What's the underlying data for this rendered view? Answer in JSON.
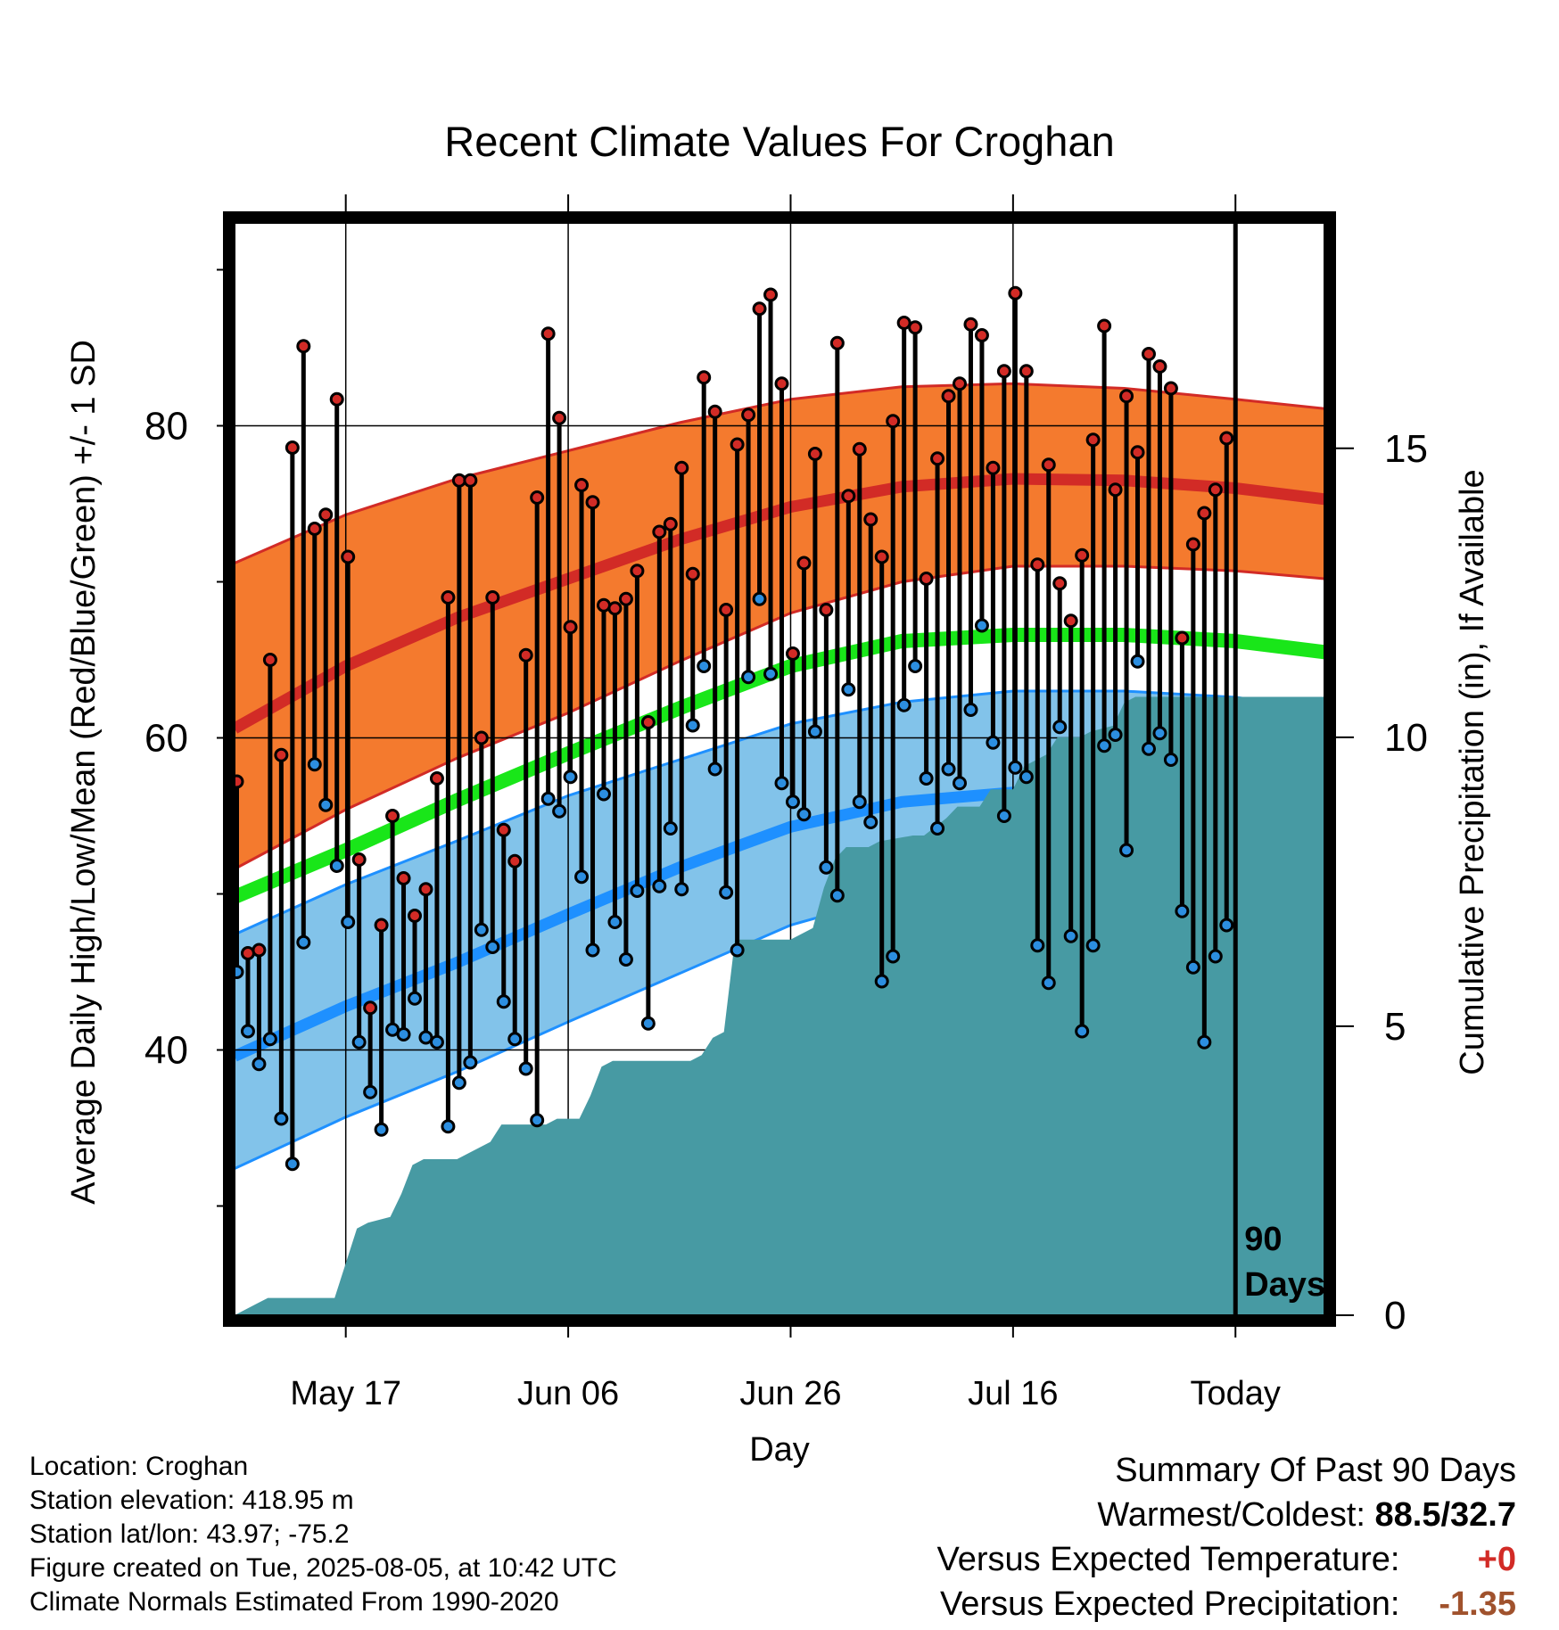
{
  "chart_data": {
    "type": "line",
    "title": "Recent Climate Values For Croghan",
    "xlabel": "Day",
    "ylabel": "Average Daily High/Low/Mean (Red/Blue/Green) +/- 1 SD",
    "ylabel_right": "Cumulative Precipitation (in), If Available",
    "x_range": [
      "2025-05-07",
      "2025-08-13"
    ],
    "x_tick_labels": [
      {
        "date": "2025-05-17",
        "label": "May 17"
      },
      {
        "date": "2025-06-06",
        "label": "Jun 06"
      },
      {
        "date": "2025-06-26",
        "label": "Jun 26"
      },
      {
        "date": "2025-07-16",
        "label": "Jul 16"
      },
      {
        "date": "2025-08-05",
        "label": "Today"
      }
    ],
    "ylim": [
      23,
      93
    ],
    "y_ticks": [
      40,
      60,
      80
    ],
    "y_minor_ticks": [
      30,
      50,
      70,
      90
    ],
    "precip_ylim": [
      0,
      18.9
    ],
    "precip_ticks": [
      0,
      5,
      10,
      15
    ],
    "grid": true,
    "today_marker": {
      "date": "2025-08-05",
      "label_line1": "90",
      "label_line2": "Days"
    },
    "colors": {
      "high_band": "#f47a2e",
      "high_mean": "#d22b26",
      "low_band": "#82c3ea",
      "low_mean": "#1e90ff",
      "mean_line": "#19e619",
      "precip": "#479aa3",
      "high_point": "#d22b26",
      "low_point": "#2c8ee0"
    },
    "normals": {
      "dates": [
        "2025-05-07",
        "2025-05-17",
        "2025-05-27",
        "2025-06-06",
        "2025-06-16",
        "2025-06-26",
        "2025-07-06",
        "2025-07-16",
        "2025-07-26",
        "2025-08-05",
        "2025-08-13"
      ],
      "high_mean": [
        60.6,
        64.6,
        67.7,
        70.2,
        72.7,
        74.8,
        76.1,
        76.6,
        76.5,
        76.0,
        75.3
      ],
      "high_upper": [
        71.2,
        74.3,
        76.6,
        78.4,
        80.2,
        81.7,
        82.5,
        82.7,
        82.4,
        81.7,
        81.1
      ],
      "high_lower": [
        51.6,
        55.4,
        58.7,
        61.6,
        64.9,
        68.0,
        70.0,
        71.0,
        71.0,
        70.7,
        70.2
      ],
      "mean_line": [
        49.8,
        52.8,
        56.0,
        59.0,
        61.9,
        64.6,
        66.2,
        66.6,
        66.6,
        66.2,
        65.5
      ],
      "low_mean": [
        39.6,
        42.8,
        45.6,
        48.7,
        51.7,
        54.3,
        55.9,
        56.5,
        56.6,
        56.1,
        55.5
      ],
      "low_upper": [
        47.4,
        50.6,
        53.4,
        56.3,
        58.6,
        60.9,
        62.3,
        63.0,
        63.0,
        62.6,
        61.9
      ],
      "low_lower": [
        32.4,
        35.7,
        38.6,
        41.8,
        44.9,
        48.0,
        50.0,
        50.8,
        50.8,
        50.3,
        49.5
      ]
    },
    "observations": {
      "start_date": "2025-05-07",
      "high": [
        57.2,
        46.2,
        46.4,
        65.0,
        58.9,
        78.6,
        85.1,
        73.4,
        74.3,
        81.7,
        71.6,
        52.2,
        42.7,
        48.0,
        55.0,
        51.0,
        48.6,
        50.3,
        57.4,
        69.0,
        76.5,
        76.5,
        60.0,
        69.0,
        54.1,
        52.1,
        65.3,
        75.4,
        85.9,
        80.5,
        67.1,
        76.2,
        75.1,
        68.5,
        68.3,
        68.9,
        70.7,
        61.0,
        73.2,
        73.7,
        77.3,
        70.5,
        83.1,
        80.9,
        68.2,
        78.8,
        80.7,
        87.5,
        88.4,
        82.7,
        65.4,
        71.2,
        78.2,
        68.2,
        85.3,
        75.5,
        78.5,
        74.0,
        71.6,
        80.3,
        86.6,
        86.3,
        70.2,
        77.9,
        81.9,
        82.7,
        86.5,
        85.8,
        77.3,
        83.5,
        88.5,
        83.5,
        71.1,
        77.5,
        69.9,
        67.5,
        71.7,
        79.1,
        86.4,
        75.9,
        81.9,
        78.3,
        84.6,
        83.8,
        82.4,
        66.4,
        72.4,
        74.4,
        75.9,
        79.2
      ],
      "low": [
        45.0,
        41.2,
        39.1,
        40.7,
        35.6,
        32.7,
        46.9,
        58.3,
        55.7,
        51.8,
        48.2,
        40.5,
        37.3,
        34.9,
        41.3,
        41.0,
        43.3,
        40.8,
        40.5,
        35.1,
        37.9,
        39.2,
        47.7,
        46.6,
        43.1,
        40.7,
        38.8,
        35.5,
        56.1,
        55.3,
        57.5,
        51.1,
        46.4,
        56.4,
        48.2,
        45.8,
        50.2,
        41.7,
        50.5,
        54.2,
        50.3,
        60.8,
        64.6,
        58.0,
        50.1,
        46.4,
        63.9,
        68.9,
        64.1,
        57.1,
        55.9,
        55.1,
        60.4,
        51.7,
        49.9,
        63.1,
        55.9,
        54.6,
        44.4,
        46.0,
        62.1,
        64.6,
        57.4,
        54.2,
        58.0,
        57.1,
        61.8,
        67.2,
        59.7,
        55.0,
        58.1,
        57.5,
        46.7,
        44.3,
        60.7,
        47.3,
        41.2,
        46.7,
        59.5,
        60.2,
        52.8,
        64.9,
        59.3,
        60.3,
        58.6,
        48.9,
        45.3,
        40.5,
        46.0,
        48.0
      ]
    },
    "precip_cumulative": {
      "dates": [
        "2025-05-07",
        "2025-05-09",
        "2025-05-10",
        "2025-05-16",
        "2025-05-17",
        "2025-05-18",
        "2025-05-19",
        "2025-05-21",
        "2025-05-22",
        "2025-05-23",
        "2025-05-24",
        "2025-05-25",
        "2025-05-26",
        "2025-05-27",
        "2025-05-30",
        "2025-05-31",
        "2025-06-01",
        "2025-06-04",
        "2025-06-05",
        "2025-06-07",
        "2025-06-08",
        "2025-06-09",
        "2025-06-10",
        "2025-06-11",
        "2025-06-17",
        "2025-06-18",
        "2025-06-19",
        "2025-06-20",
        "2025-06-21",
        "2025-06-26",
        "2025-06-27",
        "2025-06-28",
        "2025-06-29",
        "2025-06-30",
        "2025-07-01",
        "2025-07-03",
        "2025-07-04",
        "2025-07-07",
        "2025-07-08",
        "2025-07-10",
        "2025-07-11",
        "2025-07-13",
        "2025-07-14",
        "2025-07-16",
        "2025-07-17",
        "2025-07-18",
        "2025-07-19",
        "2025-07-20",
        "2025-07-22",
        "2025-07-23",
        "2025-07-25",
        "2025-07-26",
        "2025-07-27",
        "2025-08-05",
        "2025-08-13"
      ],
      "values": [
        0.0,
        0.2,
        0.3,
        0.3,
        0.9,
        1.5,
        1.6,
        1.7,
        2.1,
        2.6,
        2.7,
        2.7,
        2.7,
        2.7,
        3.0,
        3.3,
        3.3,
        3.3,
        3.4,
        3.4,
        3.8,
        4.3,
        4.4,
        4.4,
        4.4,
        4.5,
        4.8,
        4.9,
        6.5,
        6.5,
        6.6,
        6.7,
        7.4,
        7.9,
        8.1,
        8.1,
        8.2,
        8.3,
        8.3,
        8.6,
        8.8,
        8.8,
        9.1,
        9.1,
        9.5,
        9.6,
        9.7,
        10.0,
        10.0,
        10.1,
        10.2,
        10.6,
        10.7,
        10.7,
        10.7
      ]
    }
  },
  "info": {
    "location": "Location: Croghan",
    "elevation": "Station elevation: 418.95 m",
    "latlon": "Station lat/lon: 43.97; -75.2",
    "created": "Figure created on Tue, 2025-08-05, at 10:42 UTC",
    "normals": "Climate Normals Estimated From 1990-2020"
  },
  "summary": {
    "title": "Summary Of Past 90 Days",
    "warmest_label": "Warmest/Coldest:",
    "warmest_value": "88.5/32.7",
    "temp_label": "Versus Expected Temperature:",
    "temp_value": "+0",
    "temp_color": "#d22b26",
    "precip_label": "Versus Expected Precipitation:",
    "precip_value": "-1.35",
    "precip_color": "#a0522d"
  }
}
